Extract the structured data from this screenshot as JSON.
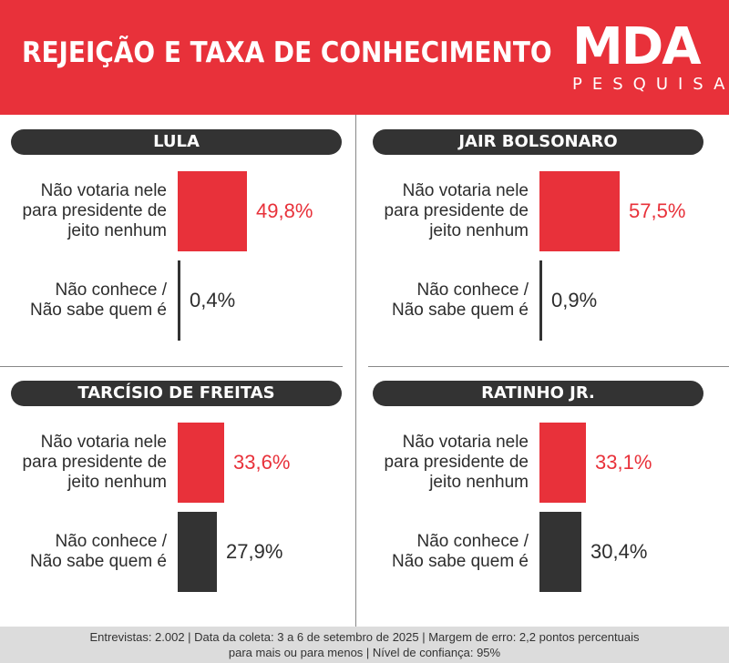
{
  "header": {
    "title": "REJEIÇÃO E TAXA DE CONHECIMENTO",
    "logo_main": "MDA",
    "logo_sub": "PESQUISA"
  },
  "colors": {
    "header_red": "#e8313a",
    "rejection_bar": "#e8313a",
    "rejection_value": "#e8313a",
    "unknown_bar": "#333333",
    "unknown_value": "#2d2d2d",
    "pill": "#333333"
  },
  "chart_data": {
    "type": "bar",
    "categories": [
      "Não votaria nele\npara presidente de\njeito nenhum",
      "Não conhece /\nNão sabe quem é"
    ],
    "candidates": [
      {
        "name": "LULA",
        "values": [
          49.8,
          0.4
        ],
        "labels": [
          "49,8%",
          "0,4%"
        ]
      },
      {
        "name": "JAIR BOLSONARO",
        "values": [
          57.5,
          0.9
        ],
        "labels": [
          "57,5%",
          "0,9%"
        ]
      },
      {
        "name": "TARCÍSIO DE FREITAS",
        "values": [
          33.6,
          27.9
        ],
        "labels": [
          "33,6%",
          "27,9%"
        ]
      },
      {
        "name": "RATINHO JR.",
        "values": [
          33.1,
          30.4
        ],
        "labels": [
          "33,1%",
          "30,4%"
        ]
      }
    ]
  },
  "footer": {
    "line1": "Entrevistas: 2.002 | Data da coleta: 3 a 6 de setembro de 2025 | Margem de erro: 2,2 pontos percentuais",
    "line2": "para mais ou para menos | Nível de confiança: 95%"
  }
}
